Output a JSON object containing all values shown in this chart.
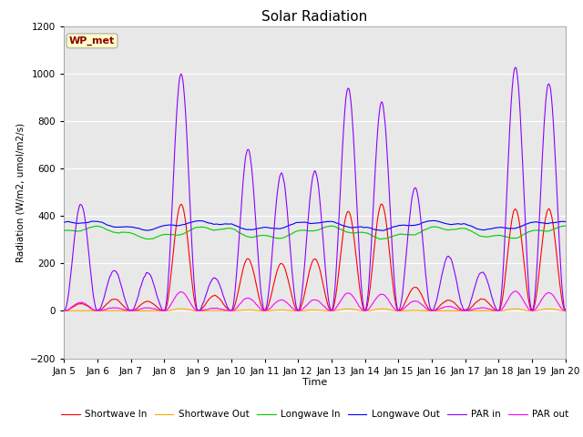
{
  "title": "Solar Radiation",
  "xlabel": "Time",
  "ylabel": "Radiation (W/m2, umol/m2/s)",
  "ylim": [
    -200,
    1200
  ],
  "yticks": [
    -200,
    0,
    200,
    400,
    600,
    800,
    1000,
    1200
  ],
  "xtick_labels": [
    "Jan 5",
    "Jan 6",
    "Jan 7",
    "Jan 8",
    "Jan 9",
    "Jan 10",
    "Jan 11",
    "Jan 12",
    "Jan 13",
    "Jan 14",
    "Jan 15",
    "Jan 16",
    "Jan 17",
    "Jan 18",
    "Jan 19",
    "Jan 20"
  ],
  "annotation_text": "WP_met",
  "annotation_color": "#8B0000",
  "annotation_bg": "#FFFFCC",
  "legend_entries": [
    "Shortwave In",
    "Shortwave Out",
    "Longwave In",
    "Longwave Out",
    "PAR in",
    "PAR out"
  ],
  "line_colors": [
    "#FF0000",
    "#FFA500",
    "#00CC00",
    "#0000FF",
    "#8B00FF",
    "#FF00FF"
  ],
  "background_color": "#E8E8E8",
  "title_fontsize": 11,
  "n_points": 3600,
  "days": 15,
  "sw_peaks": [
    30,
    50,
    40,
    450,
    65,
    220,
    200,
    220,
    420,
    450,
    100,
    45,
    50,
    430,
    430,
    10
  ],
  "par_peaks": [
    450,
    170,
    160,
    1000,
    140,
    680,
    580,
    590,
    940,
    880,
    520,
    230,
    165,
    1030,
    960,
    50
  ],
  "lw_in_base": 330,
  "lw_out_base": 360,
  "figsize": [
    6.4,
    4.8
  ],
  "dpi": 100
}
